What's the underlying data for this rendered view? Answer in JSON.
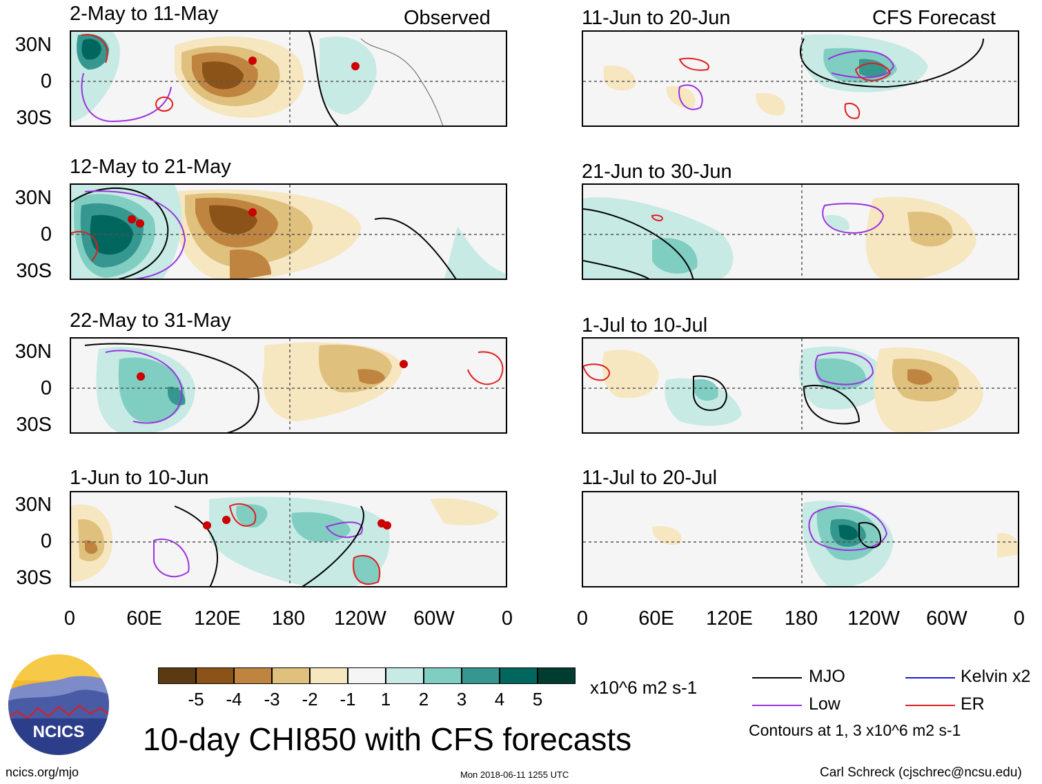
{
  "header": {
    "left_tag": "Observed",
    "right_tag": "CFS Forecast"
  },
  "panels": {
    "left": [
      {
        "title": "2-May to 11-May"
      },
      {
        "title": "12-May to 21-May"
      },
      {
        "title": "22-May to 31-May"
      },
      {
        "title": "1-Jun to 10-Jun"
      }
    ],
    "right": [
      {
        "title": "11-Jun to 20-Jun"
      },
      {
        "title": "21-Jun to 30-Jun"
      },
      {
        "title": "1-Jul to 10-Jul"
      },
      {
        "title": "11-Jul to 20-Jul"
      }
    ]
  },
  "lat_labels": {
    "north": "30N",
    "eq": "0",
    "south": "30S"
  },
  "lon_labels": [
    "0",
    "60E",
    "120E",
    "180",
    "120W",
    "60W",
    "0"
  ],
  "colorbar": {
    "colors": [
      "#5a3a12",
      "#8c5319",
      "#bf8540",
      "#dfc07d",
      "#f6e7c1",
      "#f5f5f5",
      "#c7eae5",
      "#80cdc1",
      "#35978f",
      "#01665e",
      "#003c30"
    ],
    "labels": [
      "-5",
      "-4",
      "-3",
      "-2",
      "-1",
      "1",
      "2",
      "3",
      "4",
      "5"
    ],
    "units": "x10^6 m2 s-1"
  },
  "legend": {
    "mjo": {
      "label": "MJO",
      "color": "#000000"
    },
    "low": {
      "label": "Low",
      "color": "#9b30e0"
    },
    "kelvin": {
      "label": "Kelvin x2",
      "color": "#1c1cd6"
    },
    "er": {
      "label": "ER",
      "color": "#e01c1c"
    },
    "note": "Contours at 1, 3 x10^6 m2 s-1"
  },
  "logo": {
    "text": "NCICS"
  },
  "main_title": "10-day CHI850 with CFS forecasts",
  "footer": {
    "url": "ncics.org/mjo",
    "timestamp": "Mon 2018-06-11 1255 UTC",
    "credit": "Carl Schreck (cjschrec@ncsu.edu)"
  }
}
